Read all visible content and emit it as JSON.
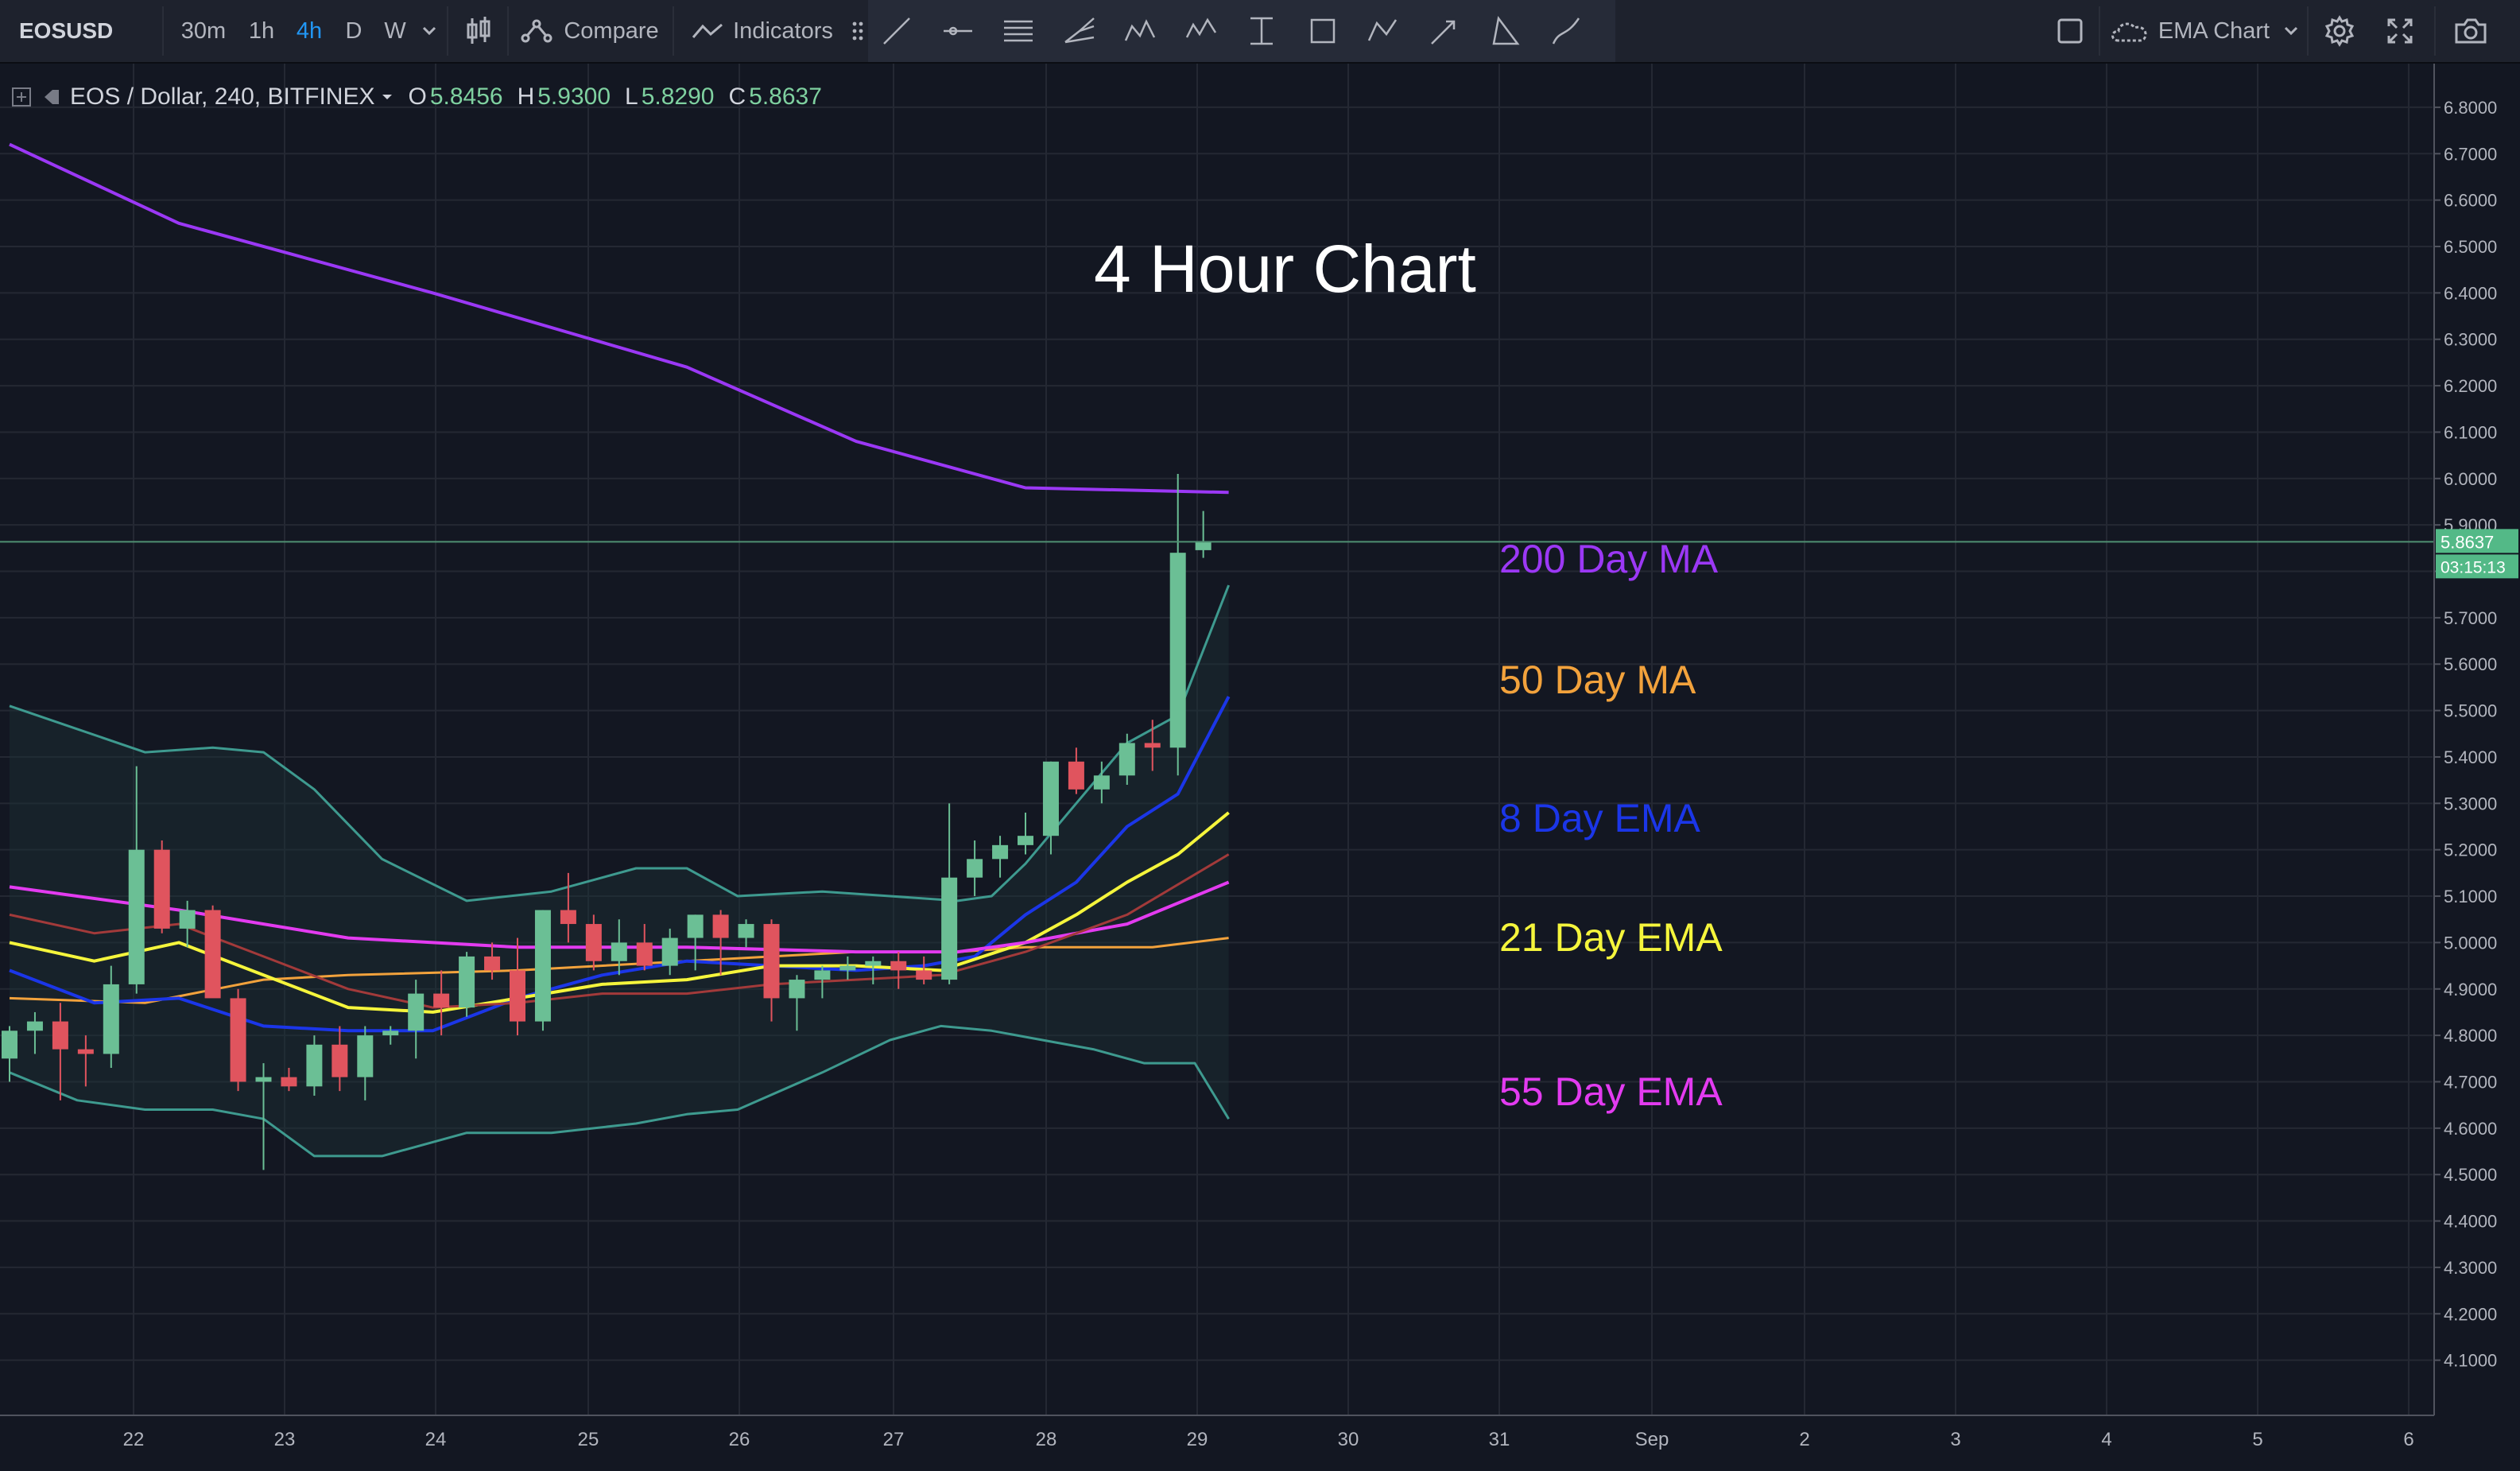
{
  "toolbar": {
    "symbol": "EOSUSD",
    "intervals": [
      "30m",
      "1h",
      "4h",
      "D",
      "W"
    ],
    "active_interval": "4h",
    "compare_label": "Compare",
    "indicators_label": "Indicators",
    "layout_label": "EMA Chart"
  },
  "legend": {
    "title": "EOS / Dollar, 240, BITFINEX",
    "open_key": "O",
    "open": "5.8456",
    "high_key": "H",
    "high": "5.9300",
    "low_key": "L",
    "low": "5.8290",
    "close_key": "C",
    "close": "5.8637"
  },
  "price_badge": {
    "price": "5.8637",
    "countdown": "03:15:13",
    "color": "#53b987"
  },
  "colors": {
    "background": "#131722",
    "grid": "#242833",
    "up": "#6bbf95",
    "down": "#e0545e",
    "ma200": "#9b38f5",
    "ma50": "#f2a23c",
    "ema8": "#1b36e8",
    "ema21": "#f5f53c",
    "ema55": "#e33bf0",
    "ema34": "#a23a3a",
    "bb": "#3e9a8f"
  },
  "annotations": {
    "title": "4 Hour Chart",
    "ma200": "200 Day MA",
    "ma50": "50 Day MA",
    "ema8": "8 Day EMA",
    "ema21": "21 Day EMA",
    "ema55": "55 Day EMA"
  },
  "chart_data": {
    "type": "candlestick",
    "ylim": [
      4.0,
      6.85
    ],
    "y_ticks": [
      "6.8000",
      "6.7000",
      "6.6000",
      "6.5000",
      "6.4000",
      "6.3000",
      "6.2000",
      "6.1000",
      "6.0000",
      "5.9000",
      "5.8000",
      "5.7000",
      "5.6000",
      "5.5000",
      "5.4000",
      "5.3000",
      "5.2000",
      "5.1000",
      "5.0000",
      "4.9000",
      "4.8000",
      "4.7000",
      "4.6000",
      "4.5000",
      "4.4000",
      "4.3000",
      "4.2000",
      "4.1000"
    ],
    "x_ticks": [
      "22",
      "23",
      "24",
      "25",
      "26",
      "27",
      "28",
      "29",
      "30",
      "31",
      "Sep",
      "2",
      "3",
      "4",
      "5",
      "6"
    ],
    "candles": [
      {
        "o": 4.75,
        "h": 4.82,
        "l": 4.7,
        "c": 4.81
      },
      {
        "o": 4.81,
        "h": 4.85,
        "l": 4.76,
        "c": 4.83
      },
      {
        "o": 4.83,
        "h": 4.87,
        "l": 4.66,
        "c": 4.77
      },
      {
        "o": 4.77,
        "h": 4.8,
        "l": 4.69,
        "c": 4.76
      },
      {
        "o": 4.76,
        "h": 4.95,
        "l": 4.73,
        "c": 4.91
      },
      {
        "o": 4.91,
        "h": 5.38,
        "l": 4.89,
        "c": 5.2
      },
      {
        "o": 5.2,
        "h": 5.22,
        "l": 5.02,
        "c": 5.03
      },
      {
        "o": 5.03,
        "h": 5.09,
        "l": 4.99,
        "c": 5.07
      },
      {
        "o": 5.07,
        "h": 5.08,
        "l": 4.89,
        "c": 4.88
      },
      {
        "o": 4.88,
        "h": 4.9,
        "l": 4.68,
        "c": 4.7
      },
      {
        "o": 4.7,
        "h": 4.74,
        "l": 4.51,
        "c": 4.71
      },
      {
        "o": 4.71,
        "h": 4.73,
        "l": 4.68,
        "c": 4.69
      },
      {
        "o": 4.69,
        "h": 4.8,
        "l": 4.67,
        "c": 4.78
      },
      {
        "o": 4.78,
        "h": 4.82,
        "l": 4.68,
        "c": 4.71
      },
      {
        "o": 4.71,
        "h": 4.82,
        "l": 4.66,
        "c": 4.8
      },
      {
        "o": 4.8,
        "h": 4.82,
        "l": 4.78,
        "c": 4.81
      },
      {
        "o": 4.81,
        "h": 4.92,
        "l": 4.75,
        "c": 4.89
      },
      {
        "o": 4.89,
        "h": 4.94,
        "l": 4.8,
        "c": 4.86
      },
      {
        "o": 4.86,
        "h": 4.98,
        "l": 4.84,
        "c": 4.97
      },
      {
        "o": 4.97,
        "h": 5.0,
        "l": 4.92,
        "c": 4.94
      },
      {
        "o": 4.94,
        "h": 5.01,
        "l": 4.8,
        "c": 4.83
      },
      {
        "o": 4.83,
        "h": 5.07,
        "l": 4.81,
        "c": 5.07
      },
      {
        "o": 5.07,
        "h": 5.15,
        "l": 5.0,
        "c": 5.04
      },
      {
        "o": 5.04,
        "h": 5.06,
        "l": 4.94,
        "c": 4.96
      },
      {
        "o": 4.96,
        "h": 5.05,
        "l": 4.93,
        "c": 5.0
      },
      {
        "o": 5.0,
        "h": 5.04,
        "l": 4.94,
        "c": 4.95
      },
      {
        "o": 4.95,
        "h": 5.03,
        "l": 4.93,
        "c": 5.01
      },
      {
        "o": 5.01,
        "h": 5.06,
        "l": 4.94,
        "c": 5.06
      },
      {
        "o": 5.06,
        "h": 5.07,
        "l": 4.93,
        "c": 5.01
      },
      {
        "o": 5.01,
        "h": 5.05,
        "l": 4.99,
        "c": 5.04
      },
      {
        "o": 5.04,
        "h": 5.05,
        "l": 4.83,
        "c": 4.88
      },
      {
        "o": 4.88,
        "h": 4.93,
        "l": 4.81,
        "c": 4.92
      },
      {
        "o": 4.92,
        "h": 4.95,
        "l": 4.88,
        "c": 4.94
      },
      {
        "o": 4.94,
        "h": 4.97,
        "l": 4.92,
        "c": 4.95
      },
      {
        "o": 4.95,
        "h": 4.97,
        "l": 4.91,
        "c": 4.96
      },
      {
        "o": 4.96,
        "h": 4.98,
        "l": 4.9,
        "c": 4.94
      },
      {
        "o": 4.94,
        "h": 4.97,
        "l": 4.91,
        "c": 4.92
      },
      {
        "o": 4.92,
        "h": 5.3,
        "l": 4.91,
        "c": 5.14
      },
      {
        "o": 5.14,
        "h": 5.22,
        "l": 5.1,
        "c": 5.18
      },
      {
        "o": 5.18,
        "h": 5.23,
        "l": 5.14,
        "c": 5.21
      },
      {
        "o": 5.21,
        "h": 5.28,
        "l": 5.19,
        "c": 5.23
      },
      {
        "o": 5.23,
        "h": 5.39,
        "l": 5.19,
        "c": 5.39
      },
      {
        "o": 5.39,
        "h": 5.42,
        "l": 5.32,
        "c": 5.33
      },
      {
        "o": 5.33,
        "h": 5.39,
        "l": 5.3,
        "c": 5.36
      },
      {
        "o": 5.36,
        "h": 5.45,
        "l": 5.34,
        "c": 5.43
      },
      {
        "o": 5.43,
        "h": 5.48,
        "l": 5.37,
        "c": 5.42
      },
      {
        "o": 5.42,
        "h": 6.01,
        "l": 5.36,
        "c": 5.84
      },
      {
        "o": 5.8456,
        "h": 5.93,
        "l": 5.829,
        "c": 5.8637
      }
    ],
    "series": [
      {
        "name": "200 Day MA",
        "key": "ma200",
        "values": [
          [
            0,
            6.72
          ],
          [
            20,
            6.55
          ],
          [
            50,
            6.4
          ],
          [
            80,
            6.24
          ],
          [
            100,
            6.08
          ],
          [
            120,
            5.98
          ],
          [
            144,
            5.97
          ]
        ]
      },
      {
        "name": "50 Day MA",
        "key": "ma50",
        "values": [
          [
            0,
            4.88
          ],
          [
            16,
            4.87
          ],
          [
            30,
            4.92
          ],
          [
            40,
            4.93
          ],
          [
            60,
            4.94
          ],
          [
            80,
            4.96
          ],
          [
            100,
            4.98
          ],
          [
            112,
            4.98
          ],
          [
            120,
            4.99
          ],
          [
            135,
            4.99
          ],
          [
            144,
            5.01
          ]
        ]
      },
      {
        "name": "8 Day EMA",
        "key": "ema8",
        "values": [
          [
            0,
            4.94
          ],
          [
            10,
            4.87
          ],
          [
            20,
            4.88
          ],
          [
            30,
            4.82
          ],
          [
            40,
            4.81
          ],
          [
            50,
            4.81
          ],
          [
            60,
            4.88
          ],
          [
            70,
            4.93
          ],
          [
            80,
            4.96
          ],
          [
            90,
            4.95
          ],
          [
            100,
            4.94
          ],
          [
            108,
            4.95
          ],
          [
            114,
            4.97
          ],
          [
            120,
            5.06
          ],
          [
            126,
            5.13
          ],
          [
            132,
            5.25
          ],
          [
            138,
            5.32
          ],
          [
            144,
            5.53
          ]
        ]
      },
      {
        "name": "21 Day EMA",
        "key": "ema21",
        "values": [
          [
            0,
            5.0
          ],
          [
            10,
            4.96
          ],
          [
            20,
            5.0
          ],
          [
            30,
            4.93
          ],
          [
            40,
            4.86
          ],
          [
            50,
            4.85
          ],
          [
            60,
            4.88
          ],
          [
            70,
            4.91
          ],
          [
            80,
            4.92
          ],
          [
            90,
            4.95
          ],
          [
            100,
            4.95
          ],
          [
            110,
            4.94
          ],
          [
            120,
            5.0
          ],
          [
            126,
            5.06
          ],
          [
            132,
            5.13
          ],
          [
            138,
            5.19
          ],
          [
            144,
            5.28
          ]
        ]
      },
      {
        "name": "55 Day EMA",
        "key": "ema55",
        "values": [
          [
            0,
            5.12
          ],
          [
            20,
            5.07
          ],
          [
            30,
            5.04
          ],
          [
            40,
            5.01
          ],
          [
            50,
            5.0
          ],
          [
            60,
            4.99
          ],
          [
            80,
            4.99
          ],
          [
            100,
            4.98
          ],
          [
            112,
            4.98
          ],
          [
            120,
            5.0
          ],
          [
            132,
            5.04
          ],
          [
            144,
            5.13
          ]
        ]
      },
      {
        "name": "",
        "key": "ema34",
        "values": [
          [
            0,
            5.06
          ],
          [
            10,
            5.02
          ],
          [
            20,
            5.04
          ],
          [
            30,
            4.97
          ],
          [
            40,
            4.9
          ],
          [
            50,
            4.86
          ],
          [
            60,
            4.87
          ],
          [
            70,
            4.89
          ],
          [
            80,
            4.89
          ],
          [
            90,
            4.91
          ],
          [
            100,
            4.92
          ],
          [
            110,
            4.93
          ],
          [
            120,
            4.98
          ],
          [
            132,
            5.06
          ],
          [
            144,
            5.19
          ]
        ]
      },
      {
        "name": "",
        "key": "bb_upper",
        "values": [
          [
            0,
            5.51
          ],
          [
            8,
            5.46
          ],
          [
            16,
            5.41
          ],
          [
            24,
            5.42
          ],
          [
            30,
            5.41
          ],
          [
            36,
            5.33
          ],
          [
            44,
            5.18
          ],
          [
            54,
            5.09
          ],
          [
            64,
            5.11
          ],
          [
            74,
            5.16
          ],
          [
            80,
            5.16
          ],
          [
            86,
            5.1
          ],
          [
            96,
            5.11
          ],
          [
            104,
            5.1
          ],
          [
            112,
            5.09
          ],
          [
            116,
            5.1
          ],
          [
            120,
            5.17
          ],
          [
            126,
            5.3
          ],
          [
            132,
            5.43
          ],
          [
            138,
            5.49
          ],
          [
            144,
            5.77
          ]
        ]
      },
      {
        "name": "",
        "key": "bb_lower",
        "values": [
          [
            0,
            4.72
          ],
          [
            8,
            4.66
          ],
          [
            16,
            4.64
          ],
          [
            24,
            4.64
          ],
          [
            30,
            4.62
          ],
          [
            36,
            4.54
          ],
          [
            44,
            4.54
          ],
          [
            54,
            4.59
          ],
          [
            64,
            4.59
          ],
          [
            74,
            4.61
          ],
          [
            80,
            4.63
          ],
          [
            86,
            4.64
          ],
          [
            96,
            4.72
          ],
          [
            104,
            4.79
          ],
          [
            110,
            4.82
          ],
          [
            116,
            4.81
          ],
          [
            122,
            4.79
          ],
          [
            128,
            4.77
          ],
          [
            134,
            4.74
          ],
          [
            140,
            4.74
          ],
          [
            144,
            4.62
          ]
        ]
      }
    ]
  }
}
